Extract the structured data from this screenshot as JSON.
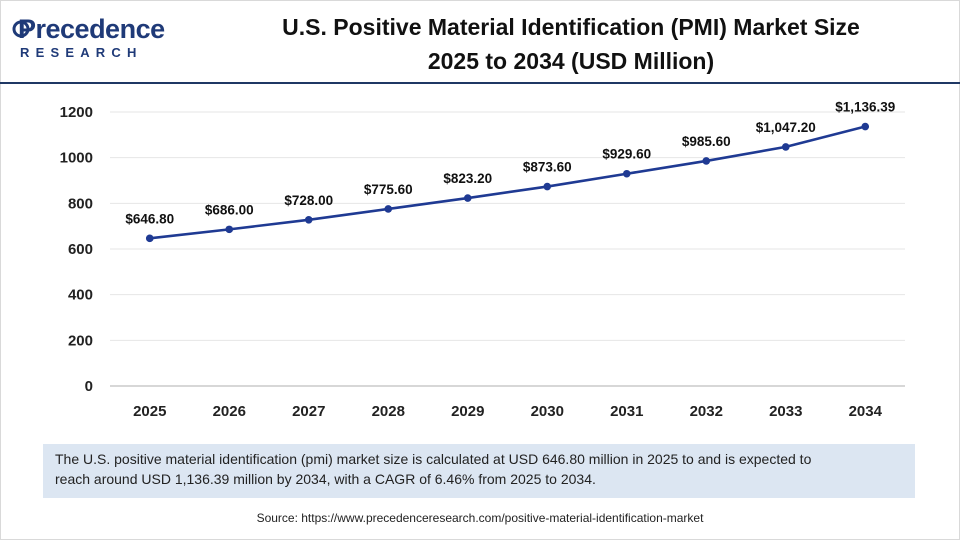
{
  "brand": {
    "name": "Precedence",
    "sub": "RESEARCH"
  },
  "header": {
    "title_line1": "U.S. Positive Material Identification (PMI) Market Size",
    "title_line2": "2025 to 2034 (USD Million)"
  },
  "colors": {
    "line": "#1f3a93",
    "grid": "#e6e6e6",
    "axis": "#bfbfbf",
    "summary_bg": "#dce6f2",
    "rule": "#1f3864"
  },
  "chart_data": {
    "type": "line",
    "title": "U.S. Positive Material Identification (PMI) Market Size 2025 to 2034 (USD Million)",
    "xlabel": "",
    "ylabel": "",
    "categories": [
      "2025",
      "2026",
      "2027",
      "2028",
      "2029",
      "2030",
      "2031",
      "2032",
      "2033",
      "2034"
    ],
    "values": [
      646.8,
      686.0,
      728.0,
      775.6,
      823.2,
      873.6,
      929.6,
      985.6,
      1047.2,
      1136.39
    ],
    "labels": [
      "$646.80",
      "$686.00",
      "$728.00",
      "$775.60",
      "$823.20",
      "$873.60",
      "$929.60",
      "$985.60",
      "$1,047.20",
      "$1,136.39"
    ],
    "ylim": [
      0,
      1200
    ],
    "yticks": [
      0,
      200,
      400,
      600,
      800,
      1000,
      1200
    ],
    "grid": true
  },
  "summary": {
    "line1": "The U.S. positive material identification (pmi) market size is calculated at USD 646.80 million in 2025 to and is expected to",
    "line2": "reach around USD 1,136.39 million by 2034, with a CAGR of 6.46% from 2025 to 2034."
  },
  "source": "Source: https://www.precedenceresearch.com/positive-material-identification-market"
}
